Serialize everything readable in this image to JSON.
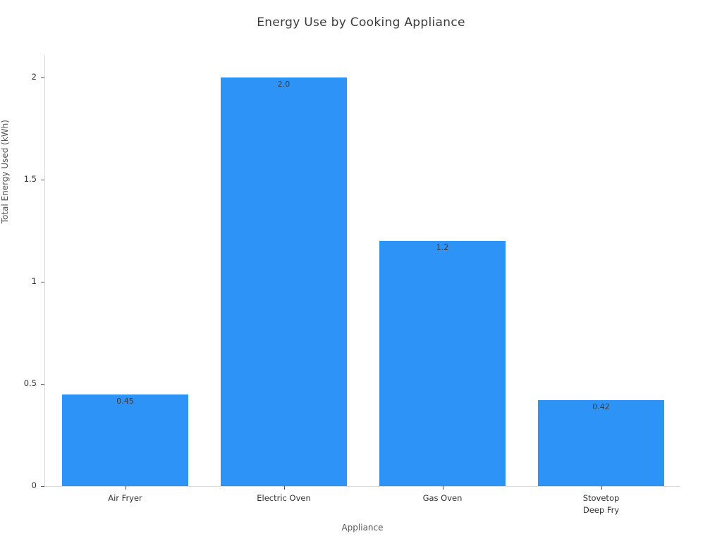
{
  "chart_data": {
    "type": "bar",
    "title": "Energy Use by Cooking Appliance",
    "xlabel": "Appliance",
    "ylabel": "Total Energy Used (kWh)",
    "categories": [
      "Air Fryer",
      "Electric Oven",
      "Gas Oven",
      "Stovetop\nDeep Fry"
    ],
    "values": [
      0.45,
      2.0,
      1.2,
      0.42
    ],
    "bar_labels": [
      "0.45",
      "2.0",
      "1.2",
      "0.42"
    ],
    "ylim": [
      0,
      2.12
    ],
    "yticks": [
      0,
      0.5,
      1,
      1.5,
      2
    ],
    "ytick_labels": [
      "0",
      "0.5",
      "1",
      "1.5",
      "2"
    ],
    "grid": false,
    "legend": "none",
    "colors": {
      "bar": "#2E93F7",
      "axis_line": "#d9d9d9",
      "tick": "#555555",
      "tick_label": "#333333",
      "title_text": "#3b3b3b",
      "axis_title_text": "#555555",
      "bar_value_text": "#3a3a3a",
      "background": "#ffffff"
    }
  }
}
